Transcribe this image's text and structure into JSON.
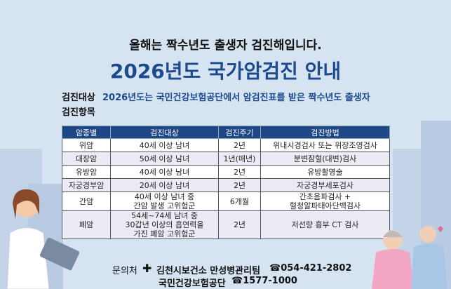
{
  "headline": "올해는 짝수년도 출생자 검진해입니다.",
  "title": "2026년도 국가암검진 안내",
  "target_label": "검진대상",
  "target_text": "2026년도는 국민건강보험공단에서 암검진표를 받은 짝수년도 출생자",
  "items_label": "검진항목",
  "table": {
    "headers": [
      "암종별",
      "검진대상",
      "검진주기",
      "검진방법"
    ],
    "rows": [
      [
        "위암",
        "40세 이상 남녀",
        "2년",
        "위내시경검사 또는 위장조영검사"
      ],
      [
        "대장암",
        "50세 이상 남녀",
        "1년(매년)",
        "분변잠혈(대변)검사"
      ],
      [
        "유방암",
        "40세 이상 남녀",
        "2년",
        "유방촬영술"
      ],
      [
        "자궁경부암",
        "20세 이상 남녀",
        "2년",
        "자궁경부세포검사"
      ],
      [
        "간암",
        "40세 이상 남녀 중\n간암 발생 고위험군",
        "6개월",
        "간초음파검사 +\n혈청알파태아단백검사"
      ],
      [
        "폐암",
        "54세~74세 남녀 중\n30갑년 이상의 흡연력을\n가진 폐암 고위험군",
        "2년",
        "저선량 흉부 CT 검사"
      ]
    ]
  },
  "contact": {
    "label": "문의처",
    "org1": "김천시보건소 만성병관리팀",
    "phone1": "☎054-421-2802",
    "org2": "국민건강보험공단",
    "phone2": "☎1577-1000"
  },
  "colors": {
    "header": "#1f4686",
    "title": "#1d4a8c",
    "background": "#d6e4f2"
  }
}
